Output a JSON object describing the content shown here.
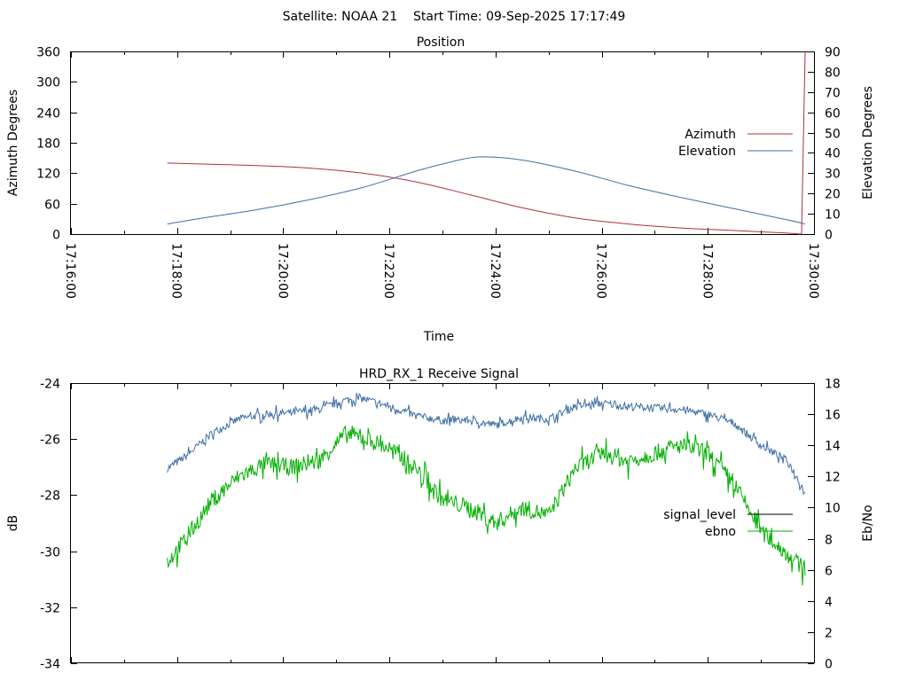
{
  "header": {
    "title": "Satellite: NOAA 21    Start Time: 09-Sep-2025 17:17:49"
  },
  "chart_data": [
    {
      "type": "line",
      "title": "Position",
      "xlabel": "Time",
      "ylabel": "Azimuth Degrees",
      "y2label": "Elevation Degrees",
      "xlim": [
        "17:16:00",
        "17:30:00"
      ],
      "x_major_ticks": [
        "17:16:00",
        "17:18:00",
        "17:20:00",
        "17:22:00",
        "17:24:00",
        "17:26:00",
        "17:28:00",
        "17:30:00"
      ],
      "ylim": [
        0,
        360
      ],
      "y_ticks": [
        0,
        60,
        120,
        180,
        240,
        300,
        360
      ],
      "y2lim": [
        0,
        90
      ],
      "y2_ticks": [
        0,
        10,
        20,
        30,
        40,
        50,
        60,
        70,
        80,
        90
      ],
      "legend_position": "right",
      "grid": false,
      "series": [
        {
          "name": "Azimuth",
          "axis": "y",
          "color": "#b0303a",
          "x": [
            "17:17:49",
            "17:18:30",
            "17:19:30",
            "17:20:30",
            "17:21:30",
            "17:22:30",
            "17:23:30",
            "17:24:30",
            "17:25:30",
            "17:26:30",
            "17:27:30",
            "17:28:30",
            "17:29:30",
            "17:29:45",
            "17:29:46",
            "17:29:50"
          ],
          "y": [
            140,
            138,
            135,
            130,
            120,
            103,
            78,
            52,
            32,
            20,
            12,
            7,
            2,
            0,
            2,
            360
          ]
        },
        {
          "name": "Elevation",
          "axis": "y2",
          "color": "#3f6fa5",
          "x": [
            "17:17:49",
            "17:18:30",
            "17:19:30",
            "17:20:30",
            "17:21:30",
            "17:22:30",
            "17:23:00",
            "17:23:40",
            "17:24:30",
            "17:25:30",
            "17:26:30",
            "17:27:30",
            "17:28:30",
            "17:29:30",
            "17:29:50"
          ],
          "y": [
            5,
            8,
            12,
            17,
            23,
            31,
            34.5,
            38,
            36.5,
            31,
            24,
            18,
            12.5,
            7,
            5
          ]
        }
      ]
    },
    {
      "type": "line",
      "title": "HRD_RX_1 Receive Signal",
      "xlabel": "",
      "ylabel": "dB",
      "y2label": "Eb/No",
      "xlim": [
        "17:16:00",
        "17:30:00"
      ],
      "ylim": [
        -34,
        -24
      ],
      "y_ticks": [
        -34,
        -32,
        -30,
        -28,
        -26,
        -24
      ],
      "y2lim": [
        0,
        18
      ],
      "y2_ticks": [
        0,
        2,
        4,
        6,
        8,
        10,
        12,
        14,
        16,
        18
      ],
      "legend_position": "right",
      "grid": false,
      "series": [
        {
          "name": "signal_level",
          "axis": "y",
          "color": "#000000",
          "x": [],
          "y": []
        },
        {
          "name": "ebno",
          "axis": "y2",
          "color": "#00b000",
          "x": [
            "17:17:49",
            "17:18:10",
            "17:18:40",
            "17:19:10",
            "17:19:40",
            "17:20:10",
            "17:20:40",
            "17:21:10",
            "17:21:30",
            "17:22:00",
            "17:22:30",
            "17:23:00",
            "17:23:30",
            "17:24:00",
            "17:24:30",
            "17:25:00",
            "17:25:30",
            "17:26:00",
            "17:26:30",
            "17:27:00",
            "17:27:30",
            "17:28:00",
            "17:28:30",
            "17:29:00",
            "17:29:30",
            "17:29:50"
          ],
          "y": [
            6.5,
            8,
            10.5,
            12,
            12.8,
            12.6,
            13,
            14.7,
            14.5,
            13.8,
            12.5,
            10.5,
            10,
            9,
            10,
            9.5,
            12.5,
            13.5,
            13,
            13.5,
            14,
            13.5,
            11.5,
            8.5,
            7,
            6
          ],
          "noise": 0.55
        },
        {
          "name": "",
          "axis": "y2",
          "color": "#3f6fa5",
          "x": [
            "17:17:49",
            "17:18:10",
            "17:18:40",
            "17:19:10",
            "17:19:40",
            "17:20:10",
            "17:20:40",
            "17:21:10",
            "17:21:30",
            "17:22:00",
            "17:22:30",
            "17:23:00",
            "17:23:30",
            "17:24:00",
            "17:24:30",
            "17:25:00",
            "17:25:30",
            "17:26:00",
            "17:26:30",
            "17:27:00",
            "17:27:30",
            "17:28:00",
            "17:28:30",
            "17:29:00",
            "17:29:30",
            "17:29:50"
          ],
          "y": [
            12.5,
            13.3,
            14.8,
            15.7,
            16,
            16.1,
            16.3,
            16.9,
            17,
            16.5,
            15.9,
            15.6,
            15.6,
            15.3,
            15.8,
            15.7,
            16.5,
            16.7,
            16.5,
            16.4,
            16.3,
            16,
            15.4,
            14,
            13,
            11
          ],
          "noise": 0.25
        }
      ]
    }
  ]
}
